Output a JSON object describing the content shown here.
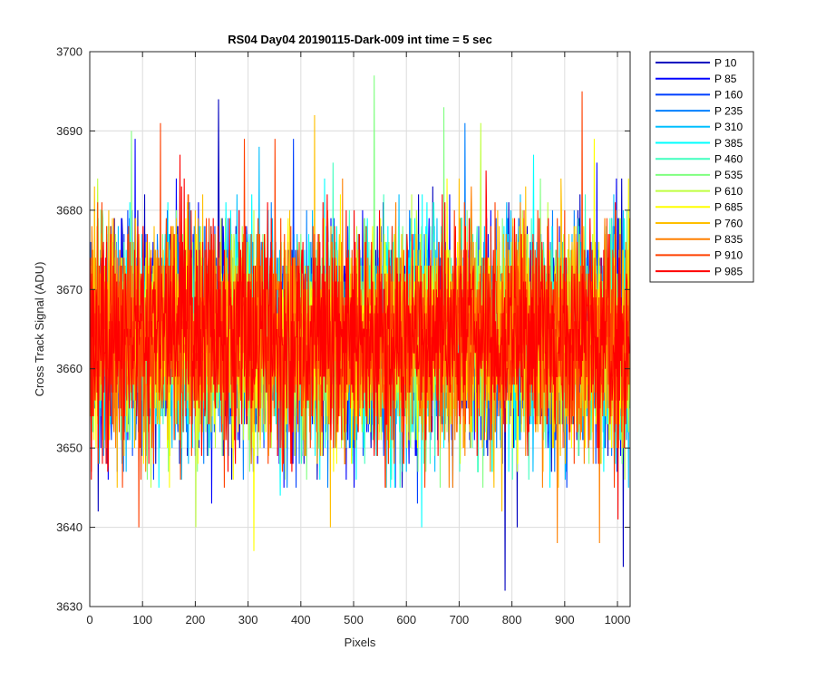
{
  "chart_data": {
    "type": "line",
    "title": "RS04 Day04 20190115-Dark-009 int time = 5 sec",
    "xlabel": "Pixels",
    "ylabel": "Cross Track Signal (ADU)",
    "xlim": [
      0,
      1024
    ],
    "ylim": [
      3630,
      3700
    ],
    "xticks": [
      0,
      100,
      200,
      300,
      400,
      500,
      600,
      700,
      800,
      900,
      1000
    ],
    "yticks": [
      3630,
      3640,
      3650,
      3660,
      3670,
      3680,
      3690,
      3700
    ],
    "grid": true,
    "legend_position": "outside-top-right",
    "noise_mean": 3664,
    "noise_sd": 6.5,
    "series": [
      {
        "name": "P 10",
        "color": "#0000bf",
        "seed": 11,
        "extremes": [
          [
            786,
            3632
          ],
          [
            1010,
            3635
          ],
          [
            243,
            3694
          ],
          [
            809,
            3640
          ],
          [
            15,
            3642
          ]
        ]
      },
      {
        "name": "P 85",
        "color": "#0000ff",
        "seed": 23,
        "extremes": [
          [
            85,
            3689
          ],
          [
            960,
            3686
          ],
          [
            230,
            3643
          ],
          [
            500,
            3645
          ]
        ]
      },
      {
        "name": "P 160",
        "color": "#0040ff",
        "seed": 37,
        "extremes": [
          [
            385,
            3689
          ],
          [
            620,
            3643
          ],
          [
            120,
            3646
          ]
        ]
      },
      {
        "name": "P 235",
        "color": "#0080ff",
        "seed": 41,
        "extremes": [
          [
            710,
            3691
          ],
          [
            290,
            3646
          ],
          [
            450,
            3645
          ]
        ]
      },
      {
        "name": "P 310",
        "color": "#00bfff",
        "seed": 53,
        "extremes": [
          [
            320,
            3688
          ],
          [
            900,
            3646
          ],
          [
            60,
            3648
          ]
        ]
      },
      {
        "name": "P 385",
        "color": "#00ffff",
        "seed": 67,
        "extremes": [
          [
            628,
            3640
          ],
          [
            360,
            3644
          ],
          [
            840,
            3687
          ]
        ]
      },
      {
        "name": "P 460",
        "color": "#40ffbf",
        "seed": 71,
        "extremes": [
          [
            460,
            3686
          ],
          [
            700,
            3647
          ],
          [
            1000,
            3648
          ]
        ]
      },
      {
        "name": "P 535",
        "color": "#80ff80",
        "seed": 83,
        "extremes": [
          [
            538,
            3697
          ],
          [
            670,
            3693
          ],
          [
            78,
            3690
          ],
          [
            410,
            3646
          ]
        ]
      },
      {
        "name": "P 610",
        "color": "#bfff40",
        "seed": 97,
        "extremes": [
          [
            200,
            3640
          ],
          [
            740,
            3691
          ],
          [
            560,
            3645
          ]
        ]
      },
      {
        "name": "P 685",
        "color": "#ffff00",
        "seed": 101,
        "extremes": [
          [
            310,
            3637
          ],
          [
            955,
            3689
          ],
          [
            150,
            3645
          ]
        ]
      },
      {
        "name": "P 760",
        "color": "#ffbf00",
        "seed": 113,
        "extremes": [
          [
            425,
            3692
          ],
          [
            455,
            3640
          ],
          [
            780,
            3642
          ]
        ]
      },
      {
        "name": "P 835",
        "color": "#ff8000",
        "seed": 127,
        "extremes": [
          [
            885,
            3638
          ],
          [
            965,
            3638
          ],
          [
            680,
            3645
          ]
        ]
      },
      {
        "name": "P 910",
        "color": "#ff4000",
        "seed": 139,
        "extremes": [
          [
            932,
            3695
          ],
          [
            133,
            3691
          ],
          [
            92,
            3640
          ],
          [
            292,
            3689
          ],
          [
            350,
            3689
          ]
        ]
      },
      {
        "name": "P 985",
        "color": "#ff0000",
        "seed": 151,
        "extremes": [
          [
            170,
            3687
          ],
          [
            1000,
            3641
          ],
          [
            750,
            3685
          ],
          [
            30,
            3648
          ]
        ]
      }
    ]
  }
}
